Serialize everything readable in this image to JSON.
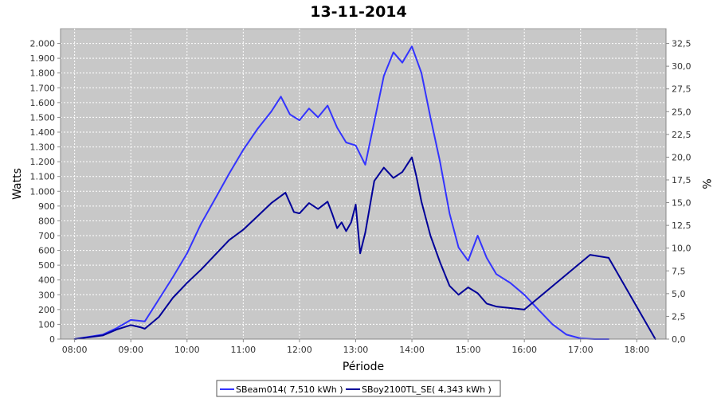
{
  "chart_data": {
    "type": "line",
    "title": "13-11-2014",
    "xlabel": "Période",
    "ylabel": "Watts",
    "y2label": "%",
    "xlim": [
      7.75,
      18.52
    ],
    "ylim": [
      0,
      2100
    ],
    "y2lim": [
      0,
      34.125
    ],
    "x_ticks": [
      {
        "label": "08:00",
        "x": 8
      },
      {
        "label": "09:00",
        "x": 9
      },
      {
        "label": "10:00",
        "x": 10
      },
      {
        "label": "11:00",
        "x": 11
      },
      {
        "label": "12:00",
        "x": 12
      },
      {
        "label": "13:00",
        "x": 13
      },
      {
        "label": "14:00",
        "x": 14
      },
      {
        "label": "15:00",
        "x": 15
      },
      {
        "label": "16:00",
        "x": 16
      },
      {
        "label": "17:00",
        "x": 17
      },
      {
        "label": "18:00",
        "x": 18
      }
    ],
    "y_ticks": [
      {
        "label": "0",
        "v": 0
      },
      {
        "label": "100",
        "v": 100
      },
      {
        "label": "200",
        "v": 200
      },
      {
        "label": "300",
        "v": 300
      },
      {
        "label": "400",
        "v": 400
      },
      {
        "label": "500",
        "v": 500
      },
      {
        "label": "600",
        "v": 600
      },
      {
        "label": "700",
        "v": 700
      },
      {
        "label": "800",
        "v": 800
      },
      {
        "label": "900",
        "v": 900
      },
      {
        "label": "1.000",
        "v": 1000
      },
      {
        "label": "1.100",
        "v": 1100
      },
      {
        "label": "1.200",
        "v": 1200
      },
      {
        "label": "1.300",
        "v": 1300
      },
      {
        "label": "1.400",
        "v": 1400
      },
      {
        "label": "1.500",
        "v": 1500
      },
      {
        "label": "1.600",
        "v": 1600
      },
      {
        "label": "1.700",
        "v": 1700
      },
      {
        "label": "1.800",
        "v": 1800
      },
      {
        "label": "1.900",
        "v": 1900
      },
      {
        "label": "2.000",
        "v": 2000
      }
    ],
    "y2_ticks": [
      {
        "label": "0,0",
        "v": 0
      },
      {
        "label": "2,5",
        "v": 2.5
      },
      {
        "label": "5,0",
        "v": 5.0
      },
      {
        "label": "7,5",
        "v": 7.5
      },
      {
        "label": "10,0",
        "v": 10.0
      },
      {
        "label": "12,5",
        "v": 12.5
      },
      {
        "label": "15,0",
        "v": 15.0
      },
      {
        "label": "17,5",
        "v": 17.5
      },
      {
        "label": "20,0",
        "v": 20.0
      },
      {
        "label": "22,5",
        "v": 22.5
      },
      {
        "label": "25,0",
        "v": 25.0
      },
      {
        "label": "27,5",
        "v": 27.5
      },
      {
        "label": "30,0",
        "v": 30.0
      },
      {
        "label": "32,5",
        "v": 32.5
      }
    ],
    "grid": true,
    "legend_position": "bottom-center",
    "series": [
      {
        "name": "SBeam014( 7,510 kWh )",
        "color": "#3333ff",
        "x": [
          8.0,
          8.5,
          8.75,
          9.0,
          9.25,
          9.5,
          9.75,
          10.0,
          10.25,
          10.5,
          10.75,
          11.0,
          11.25,
          11.5,
          11.67,
          11.83,
          12.0,
          12.17,
          12.33,
          12.5,
          12.67,
          12.83,
          13.0,
          13.17,
          13.33,
          13.5,
          13.67,
          13.83,
          14.0,
          14.17,
          14.33,
          14.5,
          14.67,
          14.83,
          15.0,
          15.17,
          15.33,
          15.5,
          15.75,
          16.0,
          16.25,
          16.5,
          16.75,
          17.0,
          17.25,
          17.5
        ],
        "y": [
          0,
          30,
          75,
          130,
          120,
          270,
          420,
          580,
          780,
          950,
          1120,
          1280,
          1420,
          1540,
          1640,
          1520,
          1480,
          1560,
          1500,
          1580,
          1430,
          1330,
          1310,
          1180,
          1470,
          1780,
          1940,
          1870,
          1980,
          1800,
          1500,
          1200,
          850,
          620,
          530,
          700,
          550,
          440,
          380,
          300,
          200,
          100,
          30,
          5,
          0,
          0
        ]
      },
      {
        "name": "SBoy2100TL_SE( 4,343 kWh )",
        "color": "#000099",
        "x": [
          8.0,
          8.5,
          8.75,
          9.0,
          9.17,
          9.25,
          9.5,
          9.75,
          10.0,
          10.25,
          10.5,
          10.75,
          11.0,
          11.25,
          11.5,
          11.75,
          11.9,
          12.0,
          12.17,
          12.33,
          12.5,
          12.58,
          12.67,
          12.75,
          12.83,
          12.92,
          13.0,
          13.08,
          13.17,
          13.33,
          13.5,
          13.67,
          13.83,
          14.0,
          14.08,
          14.17,
          14.33,
          14.5,
          14.67,
          14.83,
          15.0,
          15.17,
          15.33,
          15.5,
          16.0,
          17.17,
          17.5,
          18.33
        ],
        "y": [
          0,
          25,
          65,
          95,
          80,
          70,
          150,
          280,
          380,
          470,
          570,
          670,
          740,
          830,
          920,
          990,
          860,
          850,
          920,
          880,
          930,
          850,
          750,
          790,
          730,
          790,
          910,
          580,
          720,
          1070,
          1160,
          1090,
          1130,
          1230,
          1100,
          930,
          700,
          520,
          360,
          300,
          350,
          310,
          240,
          220,
          200,
          570,
          550,
          0
        ]
      }
    ]
  }
}
